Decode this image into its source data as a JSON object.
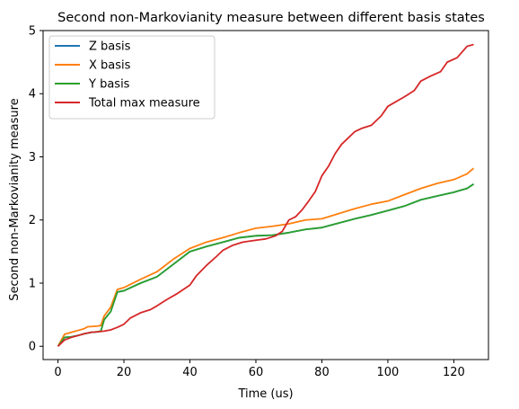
{
  "chart_data": {
    "type": "line",
    "title": "Second non-Markovianity measure between different basis states",
    "xlabel": "Time (us)",
    "ylabel": "Second non-Markovianity measure",
    "xlim": [
      -4.5,
      130.5
    ],
    "ylim": [
      -0.21,
      5.0
    ],
    "xticks": [
      0,
      20,
      40,
      60,
      80,
      100,
      120
    ],
    "yticks": [
      0,
      1,
      2,
      3,
      4,
      5
    ],
    "grid": false,
    "legend_position": "top-left",
    "series": [
      {
        "name": "Z basis",
        "color": "#1f77b4",
        "x": [
          0,
          2,
          4,
          6,
          8,
          10,
          12,
          13,
          14,
          16,
          18,
          20,
          25,
          30,
          35,
          40,
          45,
          50,
          55,
          60,
          65,
          70,
          75,
          80,
          85,
          90,
          95,
          100,
          105,
          110,
          115,
          120,
          124,
          126
        ],
        "y": [
          0,
          0.14,
          0.15,
          0.17,
          0.2,
          0.22,
          0.23,
          0.24,
          0.42,
          0.55,
          0.86,
          0.88,
          1.0,
          1.1,
          1.3,
          1.5,
          1.58,
          1.65,
          1.72,
          1.75,
          1.76,
          1.8,
          1.85,
          1.88,
          1.95,
          2.02,
          2.08,
          2.15,
          2.22,
          2.32,
          2.38,
          2.44,
          2.5,
          2.57
        ]
      },
      {
        "name": "X basis",
        "color": "#ff7f0e",
        "x": [
          0,
          2,
          4,
          6,
          8,
          9,
          12,
          13,
          14,
          16,
          18,
          20,
          25,
          30,
          35,
          40,
          45,
          50,
          55,
          60,
          65,
          70,
          75,
          80,
          85,
          90,
          95,
          100,
          105,
          110,
          115,
          120,
          124,
          126
        ],
        "y": [
          0,
          0.19,
          0.22,
          0.25,
          0.28,
          0.31,
          0.32,
          0.33,
          0.48,
          0.62,
          0.9,
          0.93,
          1.06,
          1.18,
          1.38,
          1.55,
          1.65,
          1.72,
          1.8,
          1.87,
          1.9,
          1.94,
          2.0,
          2.02,
          2.1,
          2.18,
          2.25,
          2.3,
          2.4,
          2.5,
          2.58,
          2.64,
          2.73,
          2.82
        ]
      },
      {
        "name": "Y basis",
        "color": "#2ca02c",
        "x": [
          0,
          2,
          4,
          6,
          8,
          10,
          12,
          13,
          14,
          16,
          18,
          20,
          25,
          30,
          35,
          40,
          45,
          50,
          55,
          60,
          65,
          70,
          75,
          80,
          85,
          90,
          95,
          100,
          105,
          110,
          115,
          120,
          124,
          126
        ],
        "y": [
          0,
          0.14,
          0.15,
          0.17,
          0.2,
          0.22,
          0.23,
          0.24,
          0.42,
          0.55,
          0.86,
          0.88,
          1.0,
          1.1,
          1.3,
          1.5,
          1.58,
          1.65,
          1.72,
          1.75,
          1.76,
          1.8,
          1.85,
          1.88,
          1.95,
          2.02,
          2.08,
          2.15,
          2.22,
          2.32,
          2.38,
          2.44,
          2.5,
          2.57
        ]
      },
      {
        "name": "Total max measure",
        "color": "#d62728",
        "x": [
          0,
          2,
          4,
          6,
          8,
          10,
          12,
          14,
          16,
          18,
          20,
          22,
          25,
          28,
          30,
          33,
          36,
          40,
          42,
          45,
          48,
          50,
          53,
          56,
          60,
          63,
          66,
          68,
          70,
          72,
          74,
          76,
          78,
          80,
          82,
          84,
          86,
          88,
          90,
          92,
          95,
          98,
          100,
          102,
          105,
          108,
          110,
          113,
          116,
          118,
          121,
          124,
          126
        ],
        "y": [
          0,
          0.1,
          0.14,
          0.17,
          0.2,
          0.22,
          0.23,
          0.24,
          0.26,
          0.3,
          0.35,
          0.45,
          0.53,
          0.58,
          0.64,
          0.74,
          0.83,
          0.97,
          1.12,
          1.28,
          1.42,
          1.52,
          1.6,
          1.65,
          1.68,
          1.7,
          1.75,
          1.82,
          2.0,
          2.05,
          2.16,
          2.3,
          2.45,
          2.7,
          2.85,
          3.05,
          3.2,
          3.3,
          3.4,
          3.45,
          3.5,
          3.65,
          3.8,
          3.86,
          3.95,
          4.05,
          4.2,
          4.28,
          4.35,
          4.5,
          4.57,
          4.75,
          4.78
        ]
      }
    ]
  }
}
